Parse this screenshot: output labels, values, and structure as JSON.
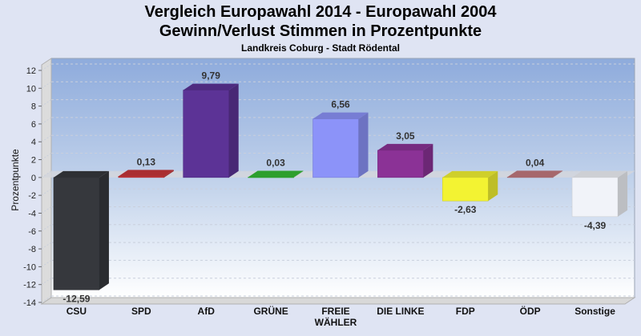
{
  "chart_data": {
    "type": "bar",
    "title": "Vergleich Europawahl 2014 - Europawahl 2004",
    "subtitle": "Gewinn/Verlust Stimmen in Prozentpunkte",
    "subsubtitle": "Landkreis Coburg - Stadt Rödental",
    "xlabel": "",
    "ylabel": "Prozentpunkte",
    "ylim": [
      -14,
      12
    ],
    "yticks": [
      12,
      10,
      8,
      6,
      4,
      2,
      0,
      -2,
      -4,
      -6,
      -8,
      -10,
      -12,
      -14
    ],
    "grid": true,
    "legend": "none",
    "categories": [
      "CSU",
      "SPD",
      "AfD",
      "GRÜNE",
      "FREIE WÄHLER",
      "DIE LINKE",
      "FDP",
      "ÖDP",
      "Sonstige"
    ],
    "category_lines": [
      [
        "CSU"
      ],
      [
        "SPD"
      ],
      [
        "AfD"
      ],
      [
        "GRÜNE"
      ],
      [
        "FREIE",
        "WÄHLER"
      ],
      [
        "DIE LINKE"
      ],
      [
        "FDP"
      ],
      [
        "ÖDP"
      ],
      [
        "Sonstige"
      ]
    ],
    "values": [
      -12.59,
      0.13,
      9.79,
      0.03,
      6.56,
      3.05,
      -2.63,
      0.04,
      -4.39
    ],
    "value_labels": [
      "-12,59",
      "0,13",
      "9,79",
      "0,03",
      "6,56",
      "3,05",
      "-2,63",
      "0,04",
      "-4,39"
    ],
    "colors": [
      "#36383d",
      "#c8363a",
      "#5c3396",
      "#35bb35",
      "#8c93f9",
      "#8b3296",
      "#f3f332",
      "#c37a7f",
      "#f1f3f9"
    ]
  }
}
